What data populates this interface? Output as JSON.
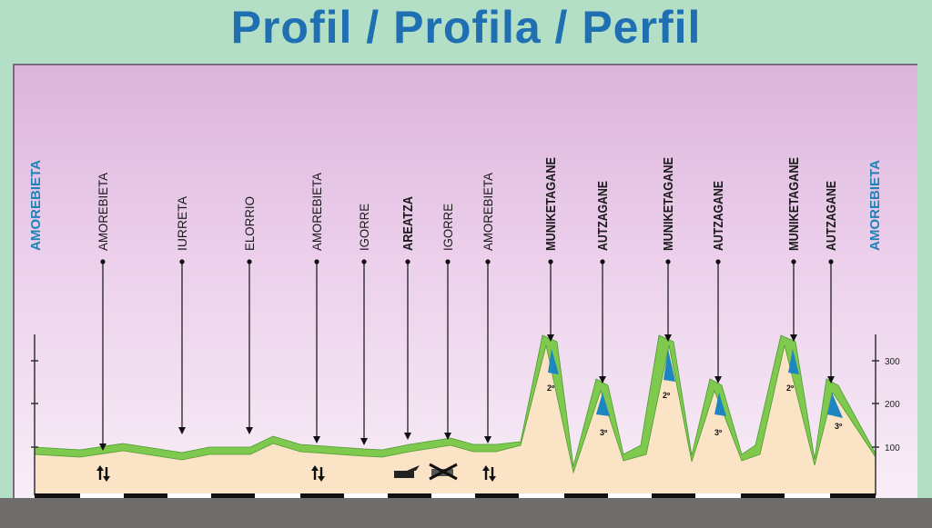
{
  "title": "Profil / Profila / Perfil",
  "start_label": "AMOREBIETA",
  "end_label": "AMOREBIETA",
  "colors": {
    "title": "#1f6fb2",
    "endpoint_labels": "#1f83b8",
    "terrain_band": "#7ec94e",
    "terrain_fill": "#fbe3c6",
    "climb_marker": "#1d86c0",
    "bottom_bar": "#6f6d6b"
  },
  "places": [
    {
      "name": "AMOREBIETA",
      "bold": false
    },
    {
      "name": "IURRETA",
      "bold": false
    },
    {
      "name": "ELORRIO",
      "bold": false
    },
    {
      "name": "AMOREBIETA",
      "bold": false
    },
    {
      "name": "IGORRE",
      "bold": false
    },
    {
      "name": "AREATZA",
      "bold": true
    },
    {
      "name": "IGORRE",
      "bold": false
    },
    {
      "name": "AMOREBIETA",
      "bold": false
    },
    {
      "name": "MUNIKETAGANE",
      "bold": true,
      "category": "2º"
    },
    {
      "name": "AUTZAGANE",
      "bold": true,
      "category": "3º"
    },
    {
      "name": "MUNIKETAGANE",
      "bold": true,
      "category": "2º"
    },
    {
      "name": "AUTZAGANE",
      "bold": true,
      "category": "3º"
    },
    {
      "name": "MUNIKETAGANE",
      "bold": true,
      "category": "2º"
    },
    {
      "name": "AUTZAGANE",
      "bold": true,
      "category": "3º"
    }
  ],
  "altitude_ticks": [
    "300",
    "200",
    "100"
  ],
  "icons": [
    "two-way-arrows-icon",
    "two-way-arrows-icon",
    "feed-zone-icon",
    "no-feeding-icon",
    "two-way-arrows-icon"
  ]
}
